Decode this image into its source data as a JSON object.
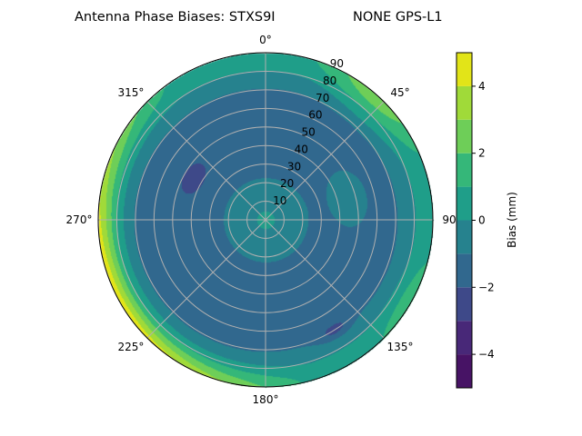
{
  "chart_data": {
    "type": "contour",
    "projection": "polar",
    "title_left": "Antenna Phase Biases: STXS9I",
    "title_right": "NONE GPS-L1",
    "theta_direction": "clockwise",
    "theta_zero": "top",
    "theta_ticks": [
      "0°",
      "45°",
      "90°",
      "135°",
      "180°",
      "225°",
      "270°",
      "315°"
    ],
    "radial_ticks": [
      "10",
      "20",
      "30",
      "40",
      "50",
      "60",
      "70",
      "80",
      "90"
    ],
    "radial_range": [
      0,
      90
    ],
    "grid": true,
    "levels": [
      -5,
      -4,
      -3,
      -2,
      -1,
      0,
      1,
      2,
      3,
      4,
      5
    ],
    "colormap": "viridis",
    "level_colors": [
      "#471365",
      "#482878",
      "#3e4989",
      "#31688e",
      "#26828e",
      "#1f9e89",
      "#35b779",
      "#6ece58",
      "#a0da39",
      "#e2e418"
    ],
    "colorbar": {
      "label": "Bias (mm)",
      "ticks": [
        "−4",
        "−2",
        "0",
        "2",
        "4"
      ],
      "tick_values": [
        -4,
        -2,
        0,
        2,
        4
      ],
      "range": [
        -5,
        5
      ]
    }
  }
}
